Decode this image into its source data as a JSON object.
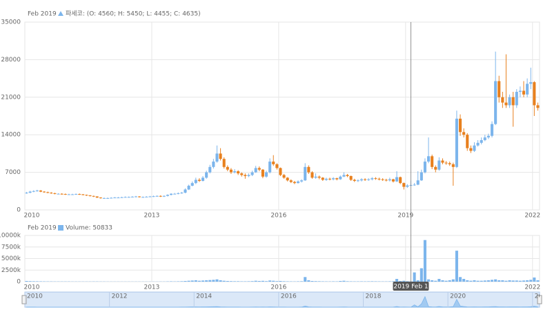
{
  "chart_data": [
    {
      "type": "candlestick",
      "series_name": "파세코",
      "cursor_date": "Feb 2019",
      "legend_values": ": (O: 4560; H: 5450; L: 4455; C: 4635)",
      "up_color": "#7cb5ec",
      "down_color": "#e8801e",
      "categories": [
        "2010-01",
        "2010-02",
        "2010-03",
        "2010-04",
        "2010-05",
        "2010-06",
        "2010-07",
        "2010-08",
        "2010-09",
        "2010-10",
        "2010-11",
        "2010-12",
        "2011-01",
        "2011-02",
        "2011-03",
        "2011-04",
        "2011-05",
        "2011-06",
        "2011-07",
        "2011-08",
        "2011-09",
        "2011-10",
        "2011-11",
        "2011-12",
        "2012-01",
        "2012-02",
        "2012-03",
        "2012-04",
        "2012-05",
        "2012-06",
        "2012-07",
        "2012-08",
        "2012-09",
        "2012-10",
        "2012-11",
        "2012-12",
        "2013-01",
        "2013-02",
        "2013-03",
        "2013-04",
        "2013-05",
        "2013-06",
        "2013-07",
        "2013-08",
        "2013-09",
        "2013-10",
        "2013-11",
        "2013-12",
        "2014-01",
        "2014-02",
        "2014-03",
        "2014-04",
        "2014-05",
        "2014-06",
        "2014-07",
        "2014-08",
        "2014-09",
        "2014-10",
        "2014-11",
        "2014-12",
        "2015-01",
        "2015-02",
        "2015-03",
        "2015-04",
        "2015-05",
        "2015-06",
        "2015-07",
        "2015-08",
        "2015-09",
        "2015-10",
        "2015-11",
        "2015-12",
        "2016-01",
        "2016-02",
        "2016-03",
        "2016-04",
        "2016-05",
        "2016-06",
        "2016-07",
        "2016-08",
        "2016-09",
        "2016-10",
        "2016-11",
        "2016-12",
        "2017-01",
        "2017-02",
        "2017-03",
        "2017-04",
        "2017-05",
        "2017-06",
        "2017-07",
        "2017-08",
        "2017-09",
        "2017-10",
        "2017-11",
        "2017-12",
        "2018-01",
        "2018-02",
        "2018-03",
        "2018-04",
        "2018-05",
        "2018-06",
        "2018-07",
        "2018-08",
        "2018-09",
        "2018-10",
        "2018-11",
        "2018-12",
        "2019-01",
        "2019-02",
        "2019-03",
        "2019-04",
        "2019-05",
        "2019-06",
        "2019-07",
        "2019-08",
        "2019-09",
        "2019-10",
        "2019-11",
        "2019-12",
        "2020-01",
        "2020-02",
        "2020-03",
        "2020-04",
        "2020-05",
        "2020-06",
        "2020-07",
        "2020-08",
        "2020-09",
        "2020-10",
        "2020-11",
        "2020-12",
        "2021-01",
        "2021-02",
        "2021-03",
        "2021-04",
        "2021-05",
        "2021-06",
        "2021-07",
        "2021-08",
        "2021-09",
        "2021-10",
        "2021-11",
        "2021-12",
        "2022-01",
        "2022-02"
      ],
      "open": [
        3100,
        3200,
        3400,
        3500,
        3600,
        3400,
        3300,
        3200,
        3100,
        3000,
        3000,
        2950,
        2900,
        2900,
        2900,
        2950,
        2900,
        2800,
        2700,
        2600,
        2500,
        2300,
        2200,
        2200,
        2200,
        2250,
        2300,
        2300,
        2350,
        2400,
        2400,
        2450,
        2500,
        2400,
        2400,
        2450,
        2500,
        2550,
        2600,
        2500,
        2600,
        2800,
        3000,
        3000,
        3100,
        3200,
        3800,
        4500,
        5000,
        5600,
        5400,
        6000,
        7000,
        8000,
        9000,
        10500,
        9500,
        8000,
        7500,
        7000,
        7200,
        6800,
        6500,
        6300,
        6500,
        7000,
        7800,
        7500,
        6200,
        7000,
        9000,
        8500,
        7800,
        6500,
        6000,
        5500,
        5200,
        5000,
        5300,
        5500,
        8000,
        7000,
        6000,
        6200,
        6000,
        5600,
        5800,
        5700,
        5900,
        5700,
        6200,
        6500,
        6300,
        5600,
        5400,
        5500,
        5700,
        5600,
        5700,
        5900,
        5800,
        5700,
        5600,
        5500,
        5700,
        5300,
        6100,
        5000,
        4300,
        4560,
        4635,
        4700,
        5500,
        7000,
        9000,
        10000,
        8000,
        7500,
        9200,
        8800,
        8700,
        8500,
        8000,
        17000,
        14500,
        14000,
        11500,
        11000,
        12000,
        12500,
        13000,
        13500,
        13800,
        16000,
        24000,
        21000,
        20000,
        19500,
        21000,
        19500,
        22000,
        22200,
        21500,
        23500,
        23800,
        19500
      ],
      "high": [
        3350,
        3550,
        3650,
        3750,
        3700,
        3500,
        3400,
        3300,
        3200,
        3100,
        3100,
        3050,
        3000,
        3000,
        3050,
        3050,
        2950,
        2850,
        2750,
        2650,
        2550,
        2350,
        2300,
        2300,
        2350,
        2400,
        2400,
        2450,
        2500,
        2500,
        2550,
        2600,
        2550,
        2500,
        2550,
        2600,
        2650,
        2700,
        2700,
        2700,
        2900,
        3100,
        3150,
        3250,
        3350,
        4000,
        4700,
        5300,
        6000,
        5900,
        6300,
        7300,
        8400,
        9500,
        12000,
        11500,
        9800,
        8300,
        7800,
        7600,
        7400,
        7000,
        6800,
        6800,
        7300,
        8200,
        8100,
        7600,
        7300,
        9600,
        10200,
        8700,
        7900,
        6700,
        6100,
        5700,
        5400,
        5500,
        5700,
        8700,
        8300,
        7200,
        6800,
        6400,
        6100,
        6000,
        6000,
        6100,
        6000,
        6400,
        7000,
        6700,
        6400,
        5800,
        5700,
        5900,
        5900,
        5900,
        6100,
        6100,
        6000,
        5900,
        5800,
        6000,
        5800,
        7200,
        6200,
        5100,
        4800,
        5450,
        5000,
        7200,
        7500,
        9600,
        13500,
        10300,
        8300,
        9800,
        9600,
        9100,
        9000,
        8800,
        18500,
        17800,
        15200,
        14300,
        12000,
        12600,
        13000,
        13500,
        14000,
        14200,
        16500,
        29500,
        25000,
        22000,
        29000,
        21500,
        22000,
        22500,
        23000,
        24000,
        24500,
        26500,
        24000,
        20000
      ],
      "low": [
        3000,
        3100,
        3300,
        3400,
        3300,
        3200,
        3100,
        3000,
        2900,
        2900,
        2850,
        2800,
        2800,
        2800,
        2850,
        2800,
        2700,
        2600,
        2500,
        2400,
        2200,
        2100,
        2100,
        2100,
        2150,
        2200,
        2200,
        2250,
        2300,
        2300,
        2350,
        2350,
        2300,
        2300,
        2350,
        2400,
        2400,
        2450,
        2400,
        2400,
        2500,
        2700,
        2900,
        2900,
        3000,
        3100,
        3700,
        4400,
        4800,
        5200,
        5300,
        5800,
        6800,
        7700,
        8800,
        9200,
        7700,
        7200,
        6700,
        6800,
        6500,
        6200,
        5800,
        6100,
        6300,
        6900,
        7200,
        5900,
        6000,
        6800,
        8200,
        7500,
        6300,
        5800,
        5300,
        5000,
        4800,
        4900,
        5100,
        5400,
        6700,
        5800,
        5800,
        5700,
        5400,
        5400,
        5500,
        5500,
        5500,
        5600,
        6100,
        6100,
        5400,
        5200,
        5200,
        5300,
        5400,
        5400,
        5500,
        5600,
        5500,
        5400,
        5300,
        5300,
        5100,
        5200,
        4800,
        3800,
        4100,
        4455,
        4500,
        4600,
        5400,
        6800,
        8700,
        7600,
        7000,
        7300,
        8500,
        8400,
        8200,
        4500,
        7800,
        13800,
        13500,
        11000,
        10600,
        10800,
        11800,
        12200,
        12800,
        13200,
        13500,
        15800,
        20000,
        19000,
        19000,
        19000,
        15500,
        19000,
        21000,
        21000,
        21000,
        22500,
        17500,
        18500
      ],
      "close": [
        3200,
        3400,
        3500,
        3600,
        3400,
        3300,
        3200,
        3100,
        3000,
        3000,
        2950,
        2900,
        2900,
        2900,
        2950,
        2900,
        2800,
        2700,
        2600,
        2500,
        2300,
        2200,
        2200,
        2200,
        2250,
        2300,
        2300,
        2350,
        2400,
        2400,
        2450,
        2500,
        2400,
        2400,
        2450,
        2500,
        2550,
        2600,
        2500,
        2600,
        2800,
        3000,
        3000,
        3100,
        3200,
        3800,
        4500,
        5000,
        5600,
        5400,
        6000,
        7000,
        8000,
        9000,
        10500,
        9500,
        8000,
        7500,
        7000,
        7200,
        6800,
        6500,
        6300,
        6500,
        7000,
        7800,
        7500,
        6200,
        7000,
        9000,
        8500,
        7800,
        6500,
        6000,
        5500,
        5200,
        5000,
        5300,
        5500,
        8000,
        7000,
        6000,
        6200,
        6000,
        5600,
        5800,
        5700,
        5900,
        5700,
        6200,
        6500,
        6300,
        5600,
        5400,
        5500,
        5700,
        5600,
        5700,
        5900,
        5800,
        5700,
        5600,
        5500,
        5700,
        5300,
        6100,
        5000,
        4300,
        4560,
        4635,
        4700,
        5500,
        7000,
        9000,
        10000,
        8000,
        7500,
        9200,
        8800,
        8700,
        8500,
        8000,
        17000,
        14500,
        14000,
        11500,
        11000,
        12000,
        12500,
        13000,
        13500,
        13800,
        16000,
        24000,
        21000,
        20000,
        19500,
        21000,
        19500,
        22000,
        22200,
        21500,
        23500,
        23800,
        19500,
        19000
      ],
      "ylim": [
        0,
        35000
      ],
      "yticks": [
        0,
        7000,
        14000,
        21000,
        28000,
        35000
      ],
      "grid": true,
      "xticks": [
        {
          "value": "2010-01",
          "label": "2010"
        },
        {
          "value": "2013-01",
          "label": "2013"
        },
        {
          "value": "2016-01",
          "label": "2016"
        },
        {
          "value": "2019-01",
          "label": "2019"
        },
        {
          "value": "2022-01",
          "label": "2022"
        }
      ],
      "crosshair": "2019-02"
    },
    {
      "type": "bar",
      "series_name": "Volume",
      "cursor_date": "Feb 2019",
      "legend_values": ": 50833",
      "color": "#7cb5ec",
      "values": [
        150000,
        120000,
        100000,
        90000,
        80000,
        70000,
        60000,
        60000,
        50000,
        50000,
        50000,
        50000,
        50000,
        40000,
        40000,
        40000,
        40000,
        40000,
        40000,
        50000,
        50000,
        40000,
        40000,
        30000,
        30000,
        30000,
        30000,
        30000,
        30000,
        30000,
        30000,
        30000,
        30000,
        30000,
        30000,
        30000,
        30000,
        30000,
        40000,
        40000,
        60000,
        80000,
        60000,
        80000,
        100000,
        150000,
        200000,
        250000,
        300000,
        200000,
        250000,
        300000,
        350000,
        400000,
        500000,
        300000,
        200000,
        150000,
        120000,
        100000,
        100000,
        80000,
        80000,
        90000,
        120000,
        200000,
        150000,
        180000,
        120000,
        250000,
        200000,
        120000,
        150000,
        100000,
        80000,
        70000,
        60000,
        80000,
        100000,
        1000000,
        300000,
        150000,
        120000,
        100000,
        80000,
        70000,
        60000,
        80000,
        70000,
        150000,
        200000,
        100000,
        80000,
        70000,
        70000,
        80000,
        70000,
        80000,
        90000,
        80000,
        70000,
        60000,
        60000,
        80000,
        100000,
        600000,
        150000,
        200000,
        100000,
        50833,
        2000000,
        300000,
        2900000,
        9000000,
        500000,
        300000,
        200000,
        600000,
        300000,
        200000,
        300000,
        500000,
        6700000,
        1000000,
        600000,
        300000,
        200000,
        300000,
        200000,
        200000,
        250000,
        300000,
        400000,
        500000,
        300000,
        300000,
        200000,
        300000,
        250000,
        250000,
        200000,
        250000,
        300000,
        400000,
        900000,
        300000
      ],
      "ylim": [
        0,
        10000000
      ],
      "yticks": [
        {
          "value": 0,
          "label": "0"
        },
        {
          "value": 2500000,
          "label": "2500k"
        },
        {
          "value": 5000000,
          "label": "5000k"
        },
        {
          "value": 7500000,
          "label": "7500k"
        },
        {
          "value": 10000000,
          "label": "10000k"
        }
      ],
      "grid": true,
      "xticks": [
        {
          "value": "2010-01",
          "label": "2010"
        },
        {
          "value": "2013-01",
          "label": "2013"
        },
        {
          "value": "2016-01",
          "label": "2016"
        },
        {
          "value": "2019-01",
          "label": "2019"
        },
        {
          "value": "2022-01",
          "label": "2022"
        }
      ],
      "crosshair_label": "2019 Feb 1"
    }
  ],
  "navigator": {
    "xticks": [
      {
        "value": "2010-01",
        "label": "2010"
      },
      {
        "value": "2012-01",
        "label": "2012"
      },
      {
        "value": "2014-01",
        "label": "2014"
      },
      {
        "value": "2016-01",
        "label": "2016"
      },
      {
        "value": "2018-01",
        "label": "2018"
      },
      {
        "value": "2020-01",
        "label": "2020"
      },
      {
        "value": "2022-01",
        "label": "2022"
      }
    ]
  }
}
